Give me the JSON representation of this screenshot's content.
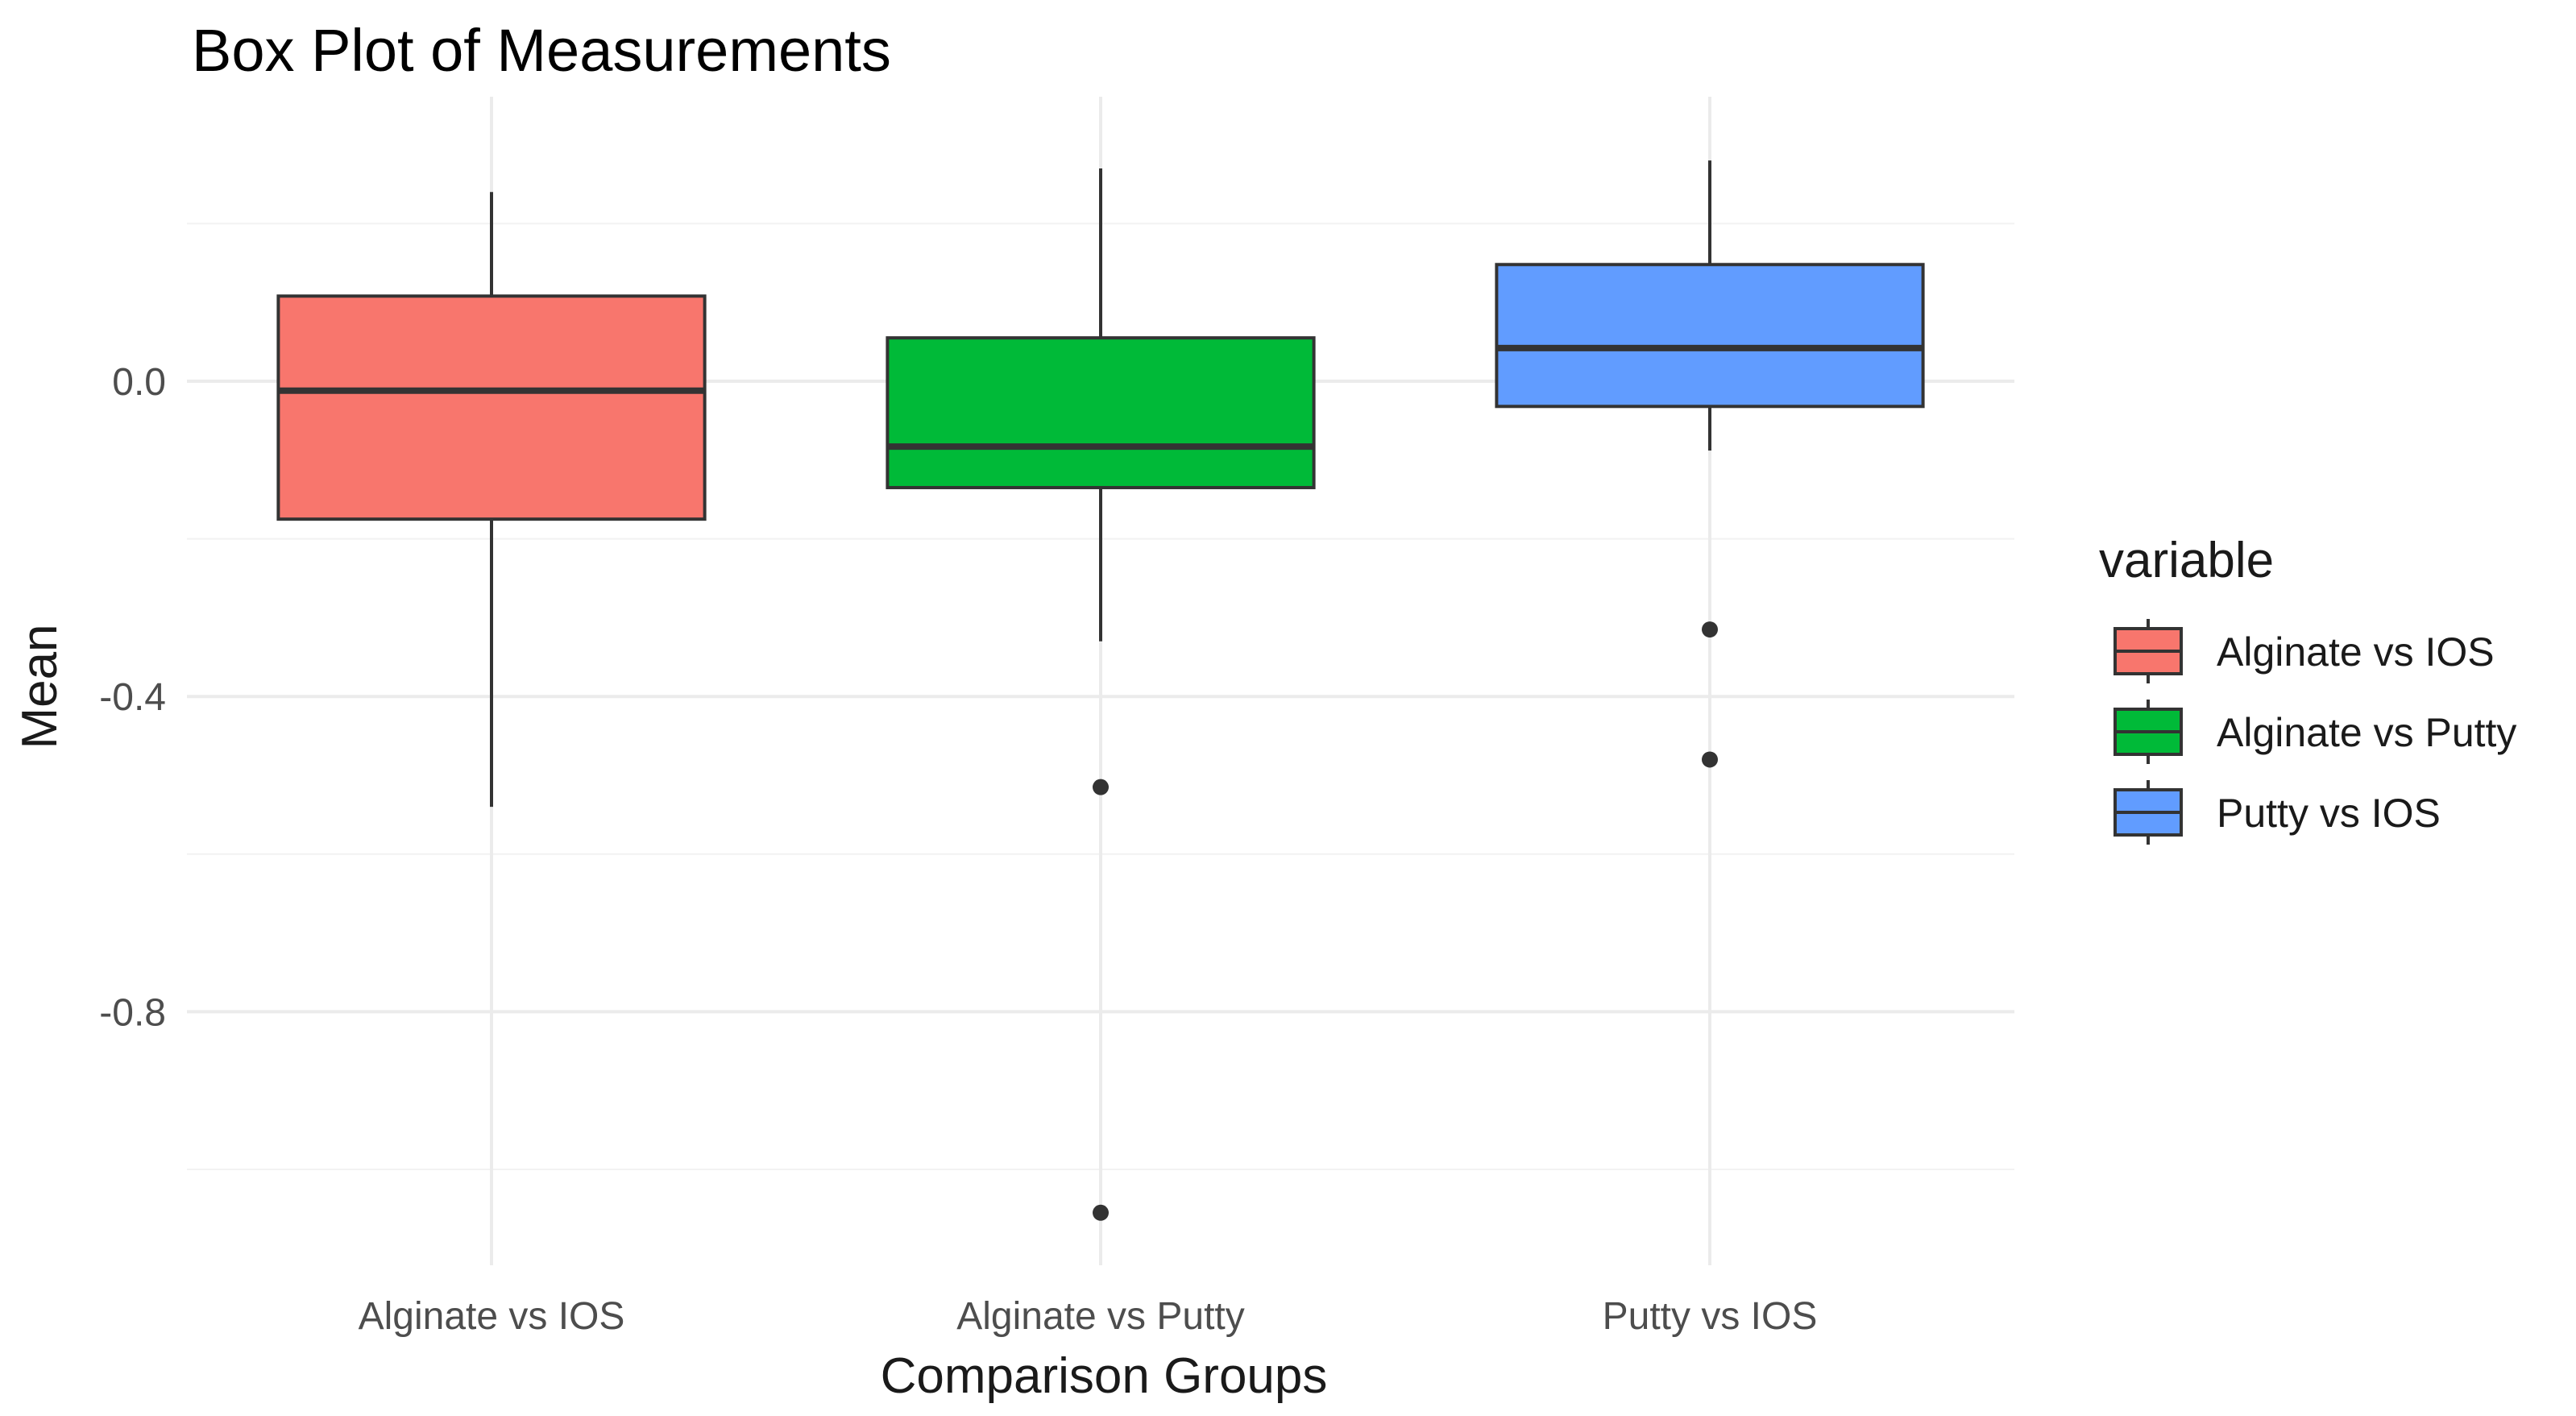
{
  "chart_data": {
    "type": "box",
    "title": "Box Plot of Measurements",
    "xlabel": "Comparison Groups",
    "ylabel": "Mean",
    "ylim": [
      -1.12,
      0.35
    ],
    "yticks": [
      0.0,
      -0.4,
      -0.8
    ],
    "ytick_labels": [
      "0.0",
      "-0.4",
      "-0.8"
    ],
    "grid": true,
    "legend": {
      "title": "variable",
      "position": "right"
    },
    "categories": [
      "Alginate vs IOS",
      "Alginate vs Putty",
      "Putty vs IOS"
    ],
    "series": [
      {
        "name": "Alginate vs IOS",
        "color": "#F8766D",
        "whisker_low": -0.54,
        "q1": -0.175,
        "median": -0.012,
        "q3": 0.108,
        "whisker_high": 0.24,
        "outliers": []
      },
      {
        "name": "Alginate vs Putty",
        "color": "#00BA38",
        "whisker_low": -0.33,
        "q1": -0.135,
        "median": -0.083,
        "q3": 0.055,
        "whisker_high": 0.27,
        "outliers": [
          -0.515,
          -1.055
        ]
      },
      {
        "name": "Putty vs IOS",
        "color": "#619CFF",
        "whisker_low": -0.088,
        "q1": -0.032,
        "median": 0.042,
        "q3": 0.148,
        "whisker_high": 0.28,
        "outliers": [
          -0.315,
          -0.48
        ]
      }
    ]
  }
}
